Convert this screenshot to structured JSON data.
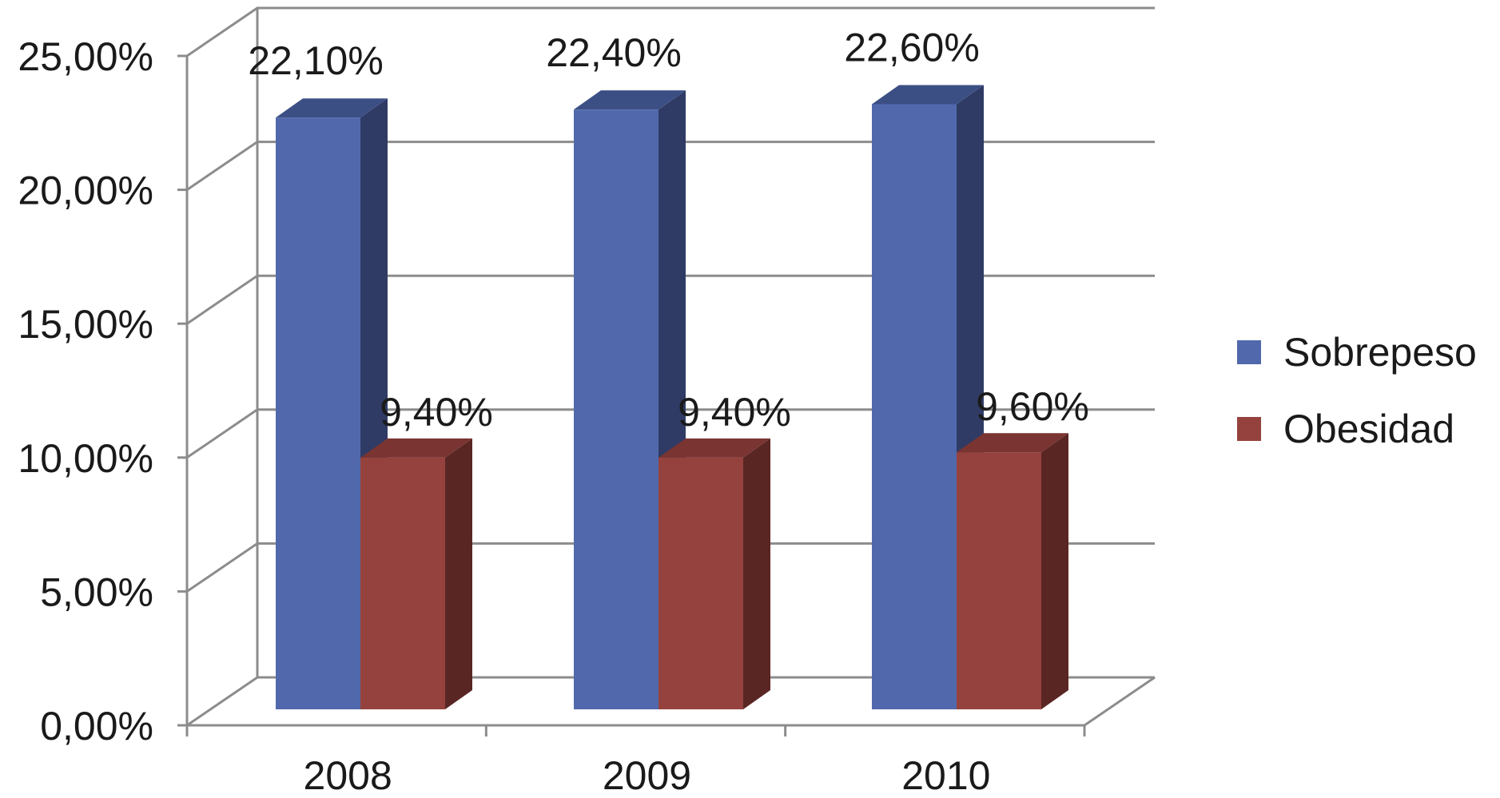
{
  "chart_data": {
    "type": "bar",
    "title": "",
    "xlabel": "",
    "ylabel": "",
    "categories": [
      "2008",
      "2009",
      "2010"
    ],
    "series": [
      {
        "name": "Sobrepeso",
        "values": [
          22.1,
          22.4,
          22.6
        ],
        "labels": [
          "22,10%",
          "22,40%",
          "22,60%"
        ],
        "color": "#5169ac",
        "side_color": "#2f3b64",
        "top_color": "#3c4f85"
      },
      {
        "name": "Obesidad",
        "values": [
          9.4,
          9.4,
          9.6
        ],
        "labels": [
          "9,40%",
          "9,40%",
          "9,60%"
        ],
        "color": "#95423e",
        "side_color": "#5a2624",
        "top_color": "#7a3431"
      }
    ],
    "ylim": [
      0,
      25
    ],
    "yticks": [
      0,
      5,
      10,
      15,
      20,
      25
    ],
    "ytick_labels": [
      "0,00%",
      "5,00%",
      "10,00%",
      "15,00%",
      "20,00%",
      "25,00%"
    ],
    "grid": true,
    "style": "3d-clustered-column",
    "legend_position": "right",
    "axis_color": "#8c8c8c"
  }
}
